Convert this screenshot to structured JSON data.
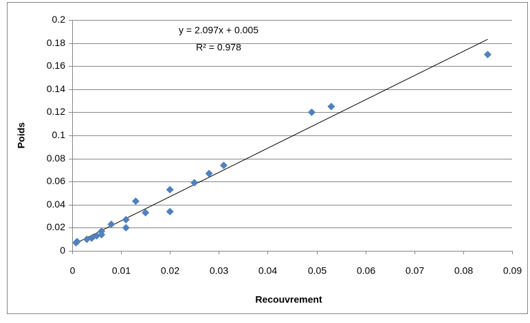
{
  "chart_data": {
    "type": "scatter",
    "x_label": "Recouvrement",
    "y_label": "Poids",
    "series": [
      {
        "color": "#4f81bd",
        "x": [
          0.0008,
          0.001,
          0.003,
          0.004,
          0.005,
          0.006,
          0.006,
          0.008,
          0.011,
          0.011,
          0.013,
          0.015,
          0.02,
          0.02,
          0.025,
          0.028,
          0.031,
          0.049,
          0.053,
          0.085
        ],
        "values": [
          0.007,
          0.008,
          0.01,
          0.011,
          0.013,
          0.014,
          0.017,
          0.023,
          0.027,
          0.02,
          0.043,
          0.033,
          0.053,
          0.034,
          0.059,
          0.067,
          0.074,
          0.12,
          0.125,
          0.17
        ]
      }
    ],
    "trendline": {
      "equation": "y = 2.097x + 0.005",
      "r_squared": "R² = 0.978",
      "color": "#000000"
    },
    "xlim": [
      0,
      0.09
    ],
    "xticks": [
      0,
      0.01,
      0.02,
      0.03,
      0.04,
      0.05,
      0.06,
      0.07,
      0.08,
      0.09
    ],
    "ylim": [
      0,
      0.2
    ],
    "yticks": [
      0,
      0.02,
      0.04,
      0.06,
      0.08,
      0.1,
      0.12,
      0.14,
      0.16,
      0.18,
      0.2
    ],
    "grid": true
  }
}
